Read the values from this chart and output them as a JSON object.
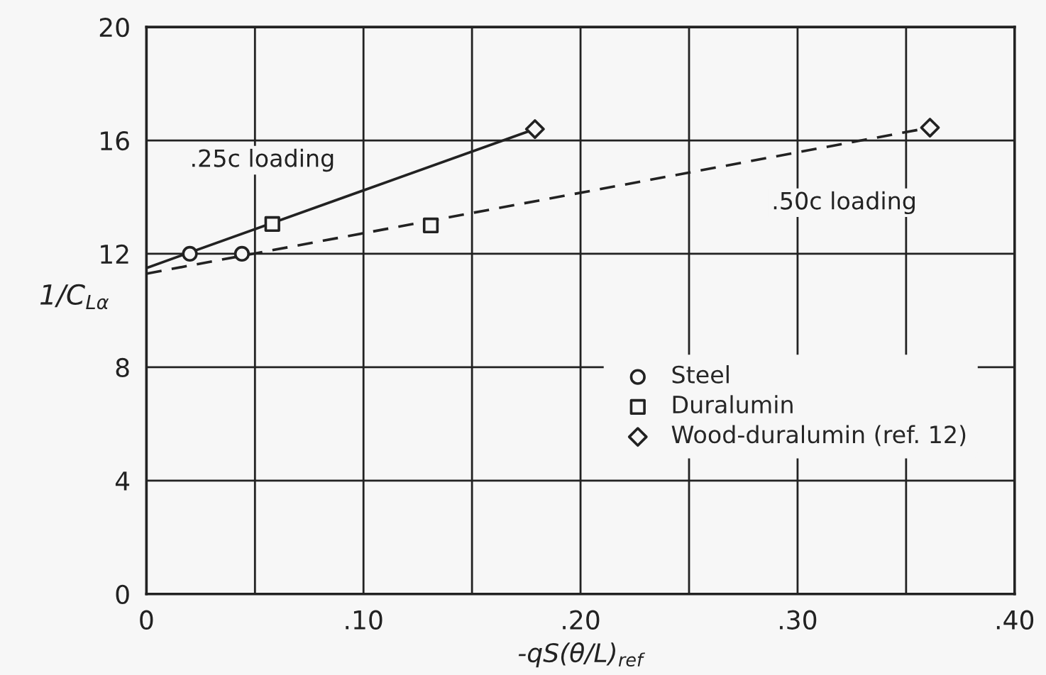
{
  "chart_data": {
    "type": "scatter",
    "xlabel": "-qS(θ/L)$_{ref}$",
    "ylabel": "1/C$_{Lα}$",
    "series": [
      {
        "name": "Steel",
        "marker": "circle",
        "color": "#222222",
        "x": [
          0.02,
          0.044
        ],
        "values": [
          12.0,
          12.0
        ]
      },
      {
        "name": "Duralumin",
        "marker": "square",
        "color": "#222222",
        "x": [
          0.058,
          0.131
        ],
        "values": [
          13.05,
          13.0
        ]
      },
      {
        "name": "Wood-duralumin (ref. 12)",
        "marker": "diamond",
        "color": "#222222",
        "x": [
          0.179,
          0.361
        ],
        "values": [
          16.4,
          16.45
        ]
      },
      {
        "type": "line",
        "line_style": "solid",
        "color": "#222222",
        "x": [
          0,
          0.179
        ],
        "values": [
          11.5,
          16.4
        ]
      },
      {
        "type": "line",
        "line_style": "dashed",
        "color": "#222222",
        "x": [
          0,
          0.361
        ],
        "values": [
          11.3,
          16.45
        ]
      }
    ],
    "annotations": [
      ".25c loading",
      ".50c loading"
    ],
    "xlim": [
      0,
      0.4
    ],
    "ylim": [
      0,
      20
    ],
    "xticks": [
      {
        "value": 0,
        "label": "0"
      },
      {
        "value": 0.05,
        "label": null
      },
      {
        "value": 0.1,
        "label": ".10"
      },
      {
        "value": 0.15,
        "label": null
      },
      {
        "value": 0.2,
        "label": ".20"
      },
      {
        "value": 0.25,
        "label": null
      },
      {
        "value": 0.3,
        "label": ".30"
      },
      {
        "value": 0.35,
        "label": null
      },
      {
        "value": 0.4,
        "label": ".40"
      }
    ],
    "yticks": [
      0,
      4,
      8,
      12,
      16,
      20
    ],
    "grid": true,
    "legend": "lower right"
  }
}
